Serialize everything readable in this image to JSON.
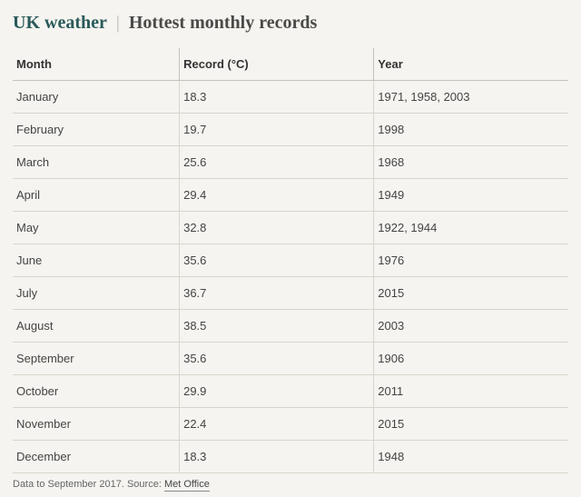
{
  "title": {
    "accent": "UK weather",
    "divider": "|",
    "main": "Hottest monthly records"
  },
  "table": {
    "type": "table",
    "columns": [
      "Month",
      "Record (°C)",
      "Year"
    ],
    "column_widths_pct": [
      30,
      35,
      35
    ],
    "header_fontsize": 13,
    "cell_fontsize": 13,
    "header_border_color": "#c5c2b8",
    "row_border_color": "#d8d5cb",
    "text_color": "#444",
    "rows": [
      [
        "January",
        "18.3",
        "1971, 1958, 2003"
      ],
      [
        "February",
        "19.7",
        "1998"
      ],
      [
        "March",
        "25.6",
        "1968"
      ],
      [
        "April",
        "29.4",
        "1949"
      ],
      [
        "May",
        "32.8",
        "1922, 1944"
      ],
      [
        "June",
        "35.6",
        "1976"
      ],
      [
        "July",
        "36.7",
        "2015"
      ],
      [
        "August",
        "38.5",
        "2003"
      ],
      [
        "September",
        "35.6",
        "1906"
      ],
      [
        "October",
        "29.9",
        "2011"
      ],
      [
        "November",
        "22.4",
        "2015"
      ],
      [
        "December",
        "18.3",
        "1948"
      ]
    ]
  },
  "footer": {
    "text": "Data to September 2017. Source: ",
    "link": "Met Office"
  },
  "style": {
    "background_color": "#f5f4f0",
    "accent_color": "#2a5a5a",
    "title_fontsize": 20,
    "footer_fontsize": 11,
    "font_family_title": "Georgia, serif",
    "font_family_body": "Segoe UI, Arial, sans-serif"
  }
}
